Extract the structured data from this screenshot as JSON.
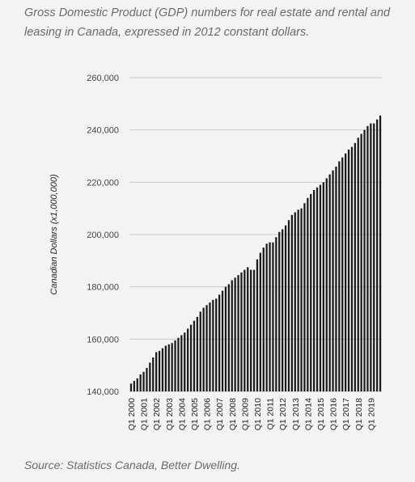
{
  "caption": "Gross Domestic Product (GDP) numbers for real estate and rental and leasing in Canada, expressed in 2012 constant dollars.",
  "source": "Source: Statistics Canada, Better Dwelling.",
  "chart_data": {
    "type": "bar",
    "title": "",
    "xlabel": "",
    "ylabel": "Canadian Dollars (x1,000,000)",
    "ylim": [
      140000,
      260000
    ],
    "yticks": [
      140000,
      160000,
      180000,
      200000,
      220000,
      240000,
      260000
    ],
    "ytick_labels": [
      "140,000",
      "160,000",
      "180,000",
      "200,000",
      "220,000",
      "240,000",
      "260,000"
    ],
    "xtick_labels": [
      "Q1 2000",
      "Q1 2001",
      "Q1 2002",
      "Q1 2003",
      "Q1 2004",
      "Q1 2005",
      "Q1 2006",
      "Q1 2007",
      "Q1 2008",
      "Q1 2009",
      "Q1 2010",
      "Q1 2011",
      "Q1 2012",
      "Q1 2013",
      "Q1 2014",
      "Q1 2015",
      "Q1 2016",
      "Q1 2017",
      "Q1 2018",
      "Q1 2019"
    ],
    "grid": true,
    "bar_color": "#1a1a1a",
    "categories": [
      "Q1 2000",
      "Q2 2000",
      "Q3 2000",
      "Q4 2000",
      "Q1 2001",
      "Q2 2001",
      "Q3 2001",
      "Q4 2001",
      "Q1 2002",
      "Q2 2002",
      "Q3 2002",
      "Q4 2002",
      "Q1 2003",
      "Q2 2003",
      "Q3 2003",
      "Q4 2003",
      "Q1 2004",
      "Q2 2004",
      "Q3 2004",
      "Q4 2004",
      "Q1 2005",
      "Q2 2005",
      "Q3 2005",
      "Q4 2005",
      "Q1 2006",
      "Q2 2006",
      "Q3 2006",
      "Q4 2006",
      "Q1 2007",
      "Q2 2007",
      "Q3 2007",
      "Q4 2007",
      "Q1 2008",
      "Q2 2008",
      "Q3 2008",
      "Q4 2008",
      "Q1 2009",
      "Q2 2009",
      "Q3 2009",
      "Q4 2009",
      "Q1 2010",
      "Q2 2010",
      "Q3 2010",
      "Q4 2010",
      "Q1 2011",
      "Q2 2011",
      "Q3 2011",
      "Q4 2011",
      "Q1 2012",
      "Q2 2012",
      "Q3 2012",
      "Q4 2012",
      "Q1 2013",
      "Q2 2013",
      "Q3 2013",
      "Q4 2013",
      "Q1 2014",
      "Q2 2014",
      "Q3 2014",
      "Q4 2014",
      "Q1 2015",
      "Q2 2015",
      "Q3 2015",
      "Q4 2015",
      "Q1 2016",
      "Q2 2016",
      "Q3 2016",
      "Q4 2016",
      "Q1 2017",
      "Q2 2017",
      "Q3 2017",
      "Q4 2017",
      "Q1 2018",
      "Q2 2018",
      "Q3 2018",
      "Q4 2018",
      "Q1 2019",
      "Q2 2019",
      "Q3 2019",
      "Q4 2019"
    ],
    "values": [
      143000,
      144000,
      145000,
      146500,
      147500,
      149000,
      151000,
      153000,
      155000,
      155500,
      156500,
      157500,
      158000,
      158500,
      159500,
      160500,
      161500,
      162500,
      164000,
      165500,
      167000,
      168500,
      170500,
      172000,
      173000,
      174000,
      175000,
      175500,
      177000,
      178500,
      180000,
      181000,
      182500,
      183500,
      184500,
      185500,
      186500,
      187500,
      186500,
      186500,
      190500,
      193000,
      195000,
      196500,
      197000,
      197000,
      199000,
      201000,
      202000,
      203500,
      205500,
      207500,
      208500,
      209500,
      210000,
      212000,
      214000,
      215500,
      217000,
      218000,
      219000,
      220000,
      221500,
      223000,
      224500,
      226000,
      228000,
      229500,
      231000,
      232500,
      233500,
      235000,
      237000,
      238500,
      240000,
      241500,
      242500,
      242500,
      244000,
      245500
    ]
  }
}
